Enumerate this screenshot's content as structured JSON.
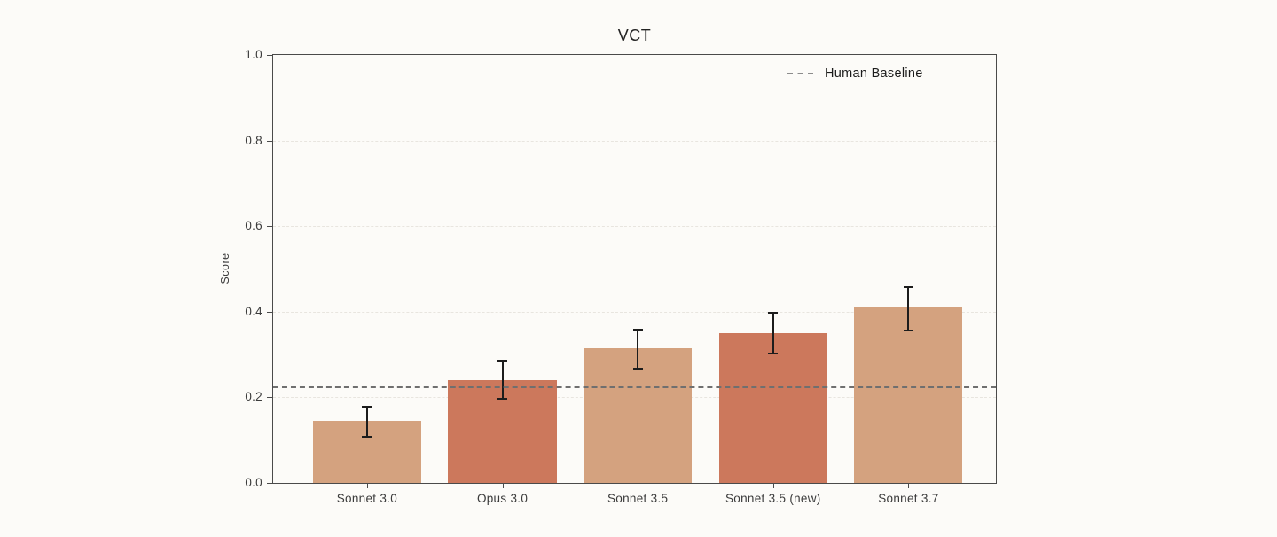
{
  "chart_data": {
    "type": "bar",
    "title": "VCT",
    "ylabel": "Score",
    "xlabel": "",
    "categories": [
      "Sonnet 3.0",
      "Opus 3.0",
      "Sonnet 3.5",
      "Sonnet 3.5 (new)",
      "Sonnet 3.7"
    ],
    "values": [
      0.145,
      0.24,
      0.315,
      0.35,
      0.41
    ],
    "error_low": [
      0.105,
      0.195,
      0.265,
      0.3,
      0.355
    ],
    "error_high": [
      0.18,
      0.288,
      0.36,
      0.4,
      0.46
    ],
    "bar_colors": [
      "#d4a27f",
      "#cc785c",
      "#d4a27f",
      "#cc785c",
      "#d4a27f"
    ],
    "ylim": [
      0.0,
      1.0
    ],
    "yticks": [
      "0.0",
      "0.2",
      "0.4",
      "0.6",
      "0.8",
      "1.0"
    ],
    "grid": "horizontal dashed gridlines at y ticks",
    "legend_position": "upper right inside plot, no frame",
    "baseline": {
      "label": "Human Baseline",
      "value": 0.223,
      "style": "dashed"
    }
  },
  "colors": {
    "background": "#fcfbf8",
    "axis_frame": "#4a4a4a",
    "gridline": "#e8e5df",
    "baseline_line": "#6f6f6f",
    "legend_dash": "#8c8c8c",
    "errorbar": "#1c1c1c",
    "tick_text": "#3b3b3b",
    "title_text": "#232323",
    "bar_tan": "#d4a27f",
    "bar_terracotta": "#cc785c"
  }
}
